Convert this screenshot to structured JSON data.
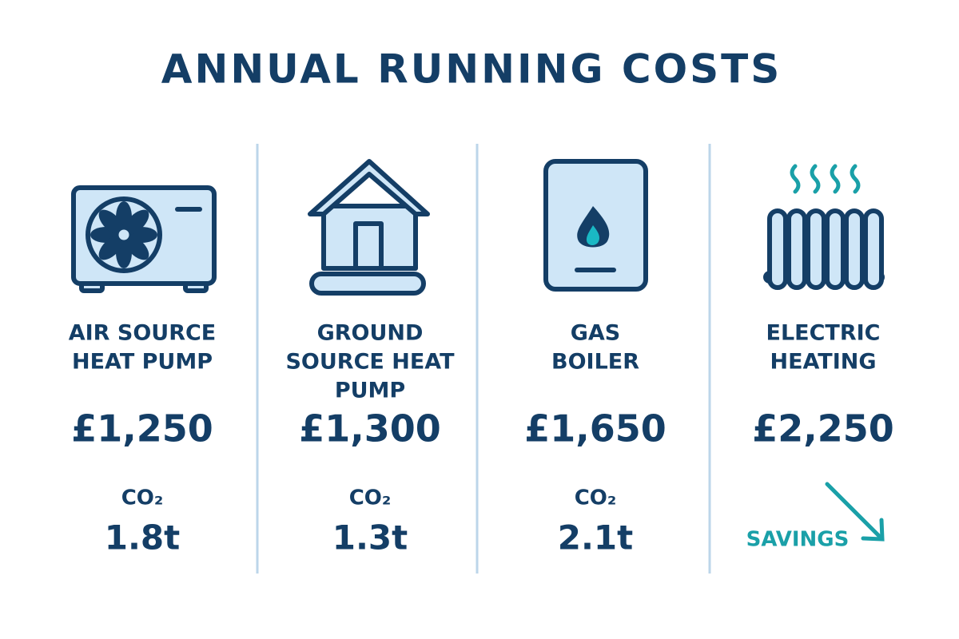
{
  "title": "ANNUAL RUNNING COSTS",
  "columns": [
    {
      "name": [
        "AIR SOURCE",
        "HEAT PUMP"
      ],
      "cost": "£1,250",
      "co2_label": "CO₂",
      "co2": "1.8t"
    },
    {
      "name": [
        "GROUND",
        "SOURCE HEAT",
        "PUMP"
      ],
      "cost": "£1,300",
      "co2_label": "CO₂",
      "co2": "1.3t"
    },
    {
      "name": [
        "GAS",
        "BOILER"
      ],
      "cost": "£1,650",
      "co2_label": "CO₂",
      "co2": "2.1t"
    },
    {
      "name": [
        "ELECTRIC",
        "HEATING"
      ],
      "cost": "£2,250",
      "note": "SAVINGS"
    }
  ]
}
